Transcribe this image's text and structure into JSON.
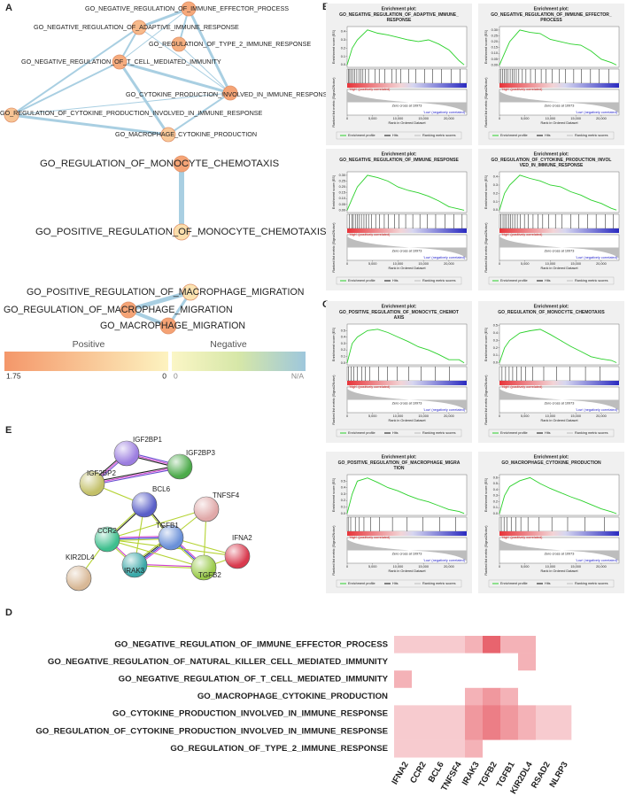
{
  "panel_labels": [
    "A",
    "B",
    "C",
    "D",
    "E"
  ],
  "network_a": {
    "groups": [
      {
        "nodes": [
          {
            "label": "GO_NEGATIVE_REGULATION_OF_IMMUNE_EFFECTOR_PROCESS",
            "value": 1.4
          },
          {
            "label": "GO_NEGATIVE_REGULATION_OF_ADAPTIVE_IMMUNE_RESPONSE",
            "value": 1.1
          },
          {
            "label": "GO_REGULATION_OF_TYPE_2_IMMUNE_RESPONSE",
            "value": 1.3
          },
          {
            "label": "GO_NEGATIVE_REGULATION_OF_T_CELL_MEDIATED_IMMUNITY",
            "value": 1.35
          },
          {
            "label": "GO_CYTOKINE_PRODUCTION_INVOLVED_IN_IMMUNE_RESPONSE",
            "value": 1.5
          },
          {
            "label": "GO_REGULATION_OF_CYTOKINE_PRODUCTION_INVOLVED_IN_IMMUNE_RESPONSE",
            "value": 0.9
          },
          {
            "label": "GO_MACROPHAGE_CYTOKINE_PRODUCTION",
            "value": 0.8
          }
        ],
        "edges": [
          [
            0,
            1
          ],
          [
            0,
            2
          ],
          [
            0,
            3
          ],
          [
            0,
            4
          ],
          [
            1,
            3
          ],
          [
            1,
            4
          ],
          [
            3,
            4
          ],
          [
            3,
            5
          ],
          [
            5,
            4
          ],
          [
            5,
            6
          ],
          [
            4,
            6
          ],
          [
            2,
            4
          ],
          [
            3,
            6
          ],
          [
            1,
            5
          ]
        ]
      },
      {
        "nodes": [
          {
            "label": "GO_REGULATION_OF_MONOCYTE_CHEMOTAXIS",
            "value": 1.5
          },
          {
            "label": "GO_POSITIVE_REGULATION_OF_MONOCYTE_CHEMOTAXIS",
            "value": 0.4
          }
        ],
        "edges": [
          [
            0,
            1
          ]
        ]
      },
      {
        "nodes": [
          {
            "label": "GO_POSITIVE_REGULATION_OF_MACROPHAGE_MIGRATION",
            "value": 0.3
          },
          {
            "label": "GO_REGULATION_OF_MACROPHAGE_MIGRATION",
            "value": 1.5
          },
          {
            "label": "GO_MACROPHAGE_MIGRATION",
            "value": 1.55
          }
        ],
        "edges": [
          [
            0,
            1
          ],
          [
            1,
            2
          ],
          [
            0,
            2
          ]
        ]
      }
    ],
    "edge_color": "#a9cfe2",
    "legend": {
      "positive": "Positive",
      "negative": "Negative",
      "pos_ticks": [
        1.75,
        0
      ],
      "neg_ticks": [
        "0",
        "N/A"
      ],
      "pos_colors": [
        "#f4976a",
        "#fdf3c0"
      ],
      "neg_colors": [
        "#fbf6c6",
        "#d6e7a8",
        "#9ec7dc"
      ]
    }
  },
  "gsea": {
    "common": {
      "heading": "Enrichment plot:",
      "es_label": "Enrichment score (ES)",
      "metric_label": "Ranked list metric (Signal2Noise)",
      "x_label": "Rank in Ordered Dataset",
      "high": "'High' (positively correlated)",
      "low": "'Low' (negatively correlated)",
      "zero_cross": "Zero cross at 10973",
      "legend": [
        "Enrichment profile",
        "Hits",
        "Ranking metric scores"
      ],
      "xlim": [
        0,
        23500
      ],
      "xticks": [
        0,
        {
          "value": 5000,
          "label": "5,000"
        },
        {
          "value": 10000,
          "label": "10,000"
        },
        {
          "value": 15000,
          "label": "15,000"
        },
        {
          "value": 20000,
          "label": "20,000"
        }
      ],
      "es_x": [
        0,
        1000,
        2000,
        4000,
        6000,
        8000,
        10000,
        12000,
        14000,
        16000,
        18000,
        20000,
        22000,
        23000
      ],
      "curve_color": "#2bd12b"
    },
    "plots": [
      {
        "title": [
          "GO_NEGATIVE_REGULATION_OF_ADAPTIVE_IMMUNE_",
          "RESPONSE"
        ],
        "ylim": [
          -0.03,
          0.46
        ],
        "yticks": [
          {
            "value": 0,
            "label": "0.0"
          },
          0.1,
          0.2,
          0.3,
          0.4
        ],
        "values": [
          0,
          0.2,
          0.3,
          0.42,
          0.38,
          0.36,
          0.33,
          0.3,
          0.28,
          0.3,
          0.25,
          0.18,
          0.05,
          0
        ],
        "hits": [
          300,
          500,
          800,
          1100,
          1500,
          1900,
          2300,
          2700,
          3100,
          3600,
          4200,
          5500,
          6300,
          7400,
          8800,
          9600,
          10500,
          12100,
          13500,
          15200,
          16800,
          18500,
          20500,
          22200
        ]
      },
      {
        "title": [
          "GO_NEGATIVE_REGULATION_OF_IMMUNE_EFFECTOR_",
          "PROCESS"
        ],
        "ylim": [
          -0.02,
          0.33
        ],
        "yticks": [
          {
            "value": 0,
            "label": "0.00"
          },
          {
            "value": 0.05,
            "label": "0.05"
          },
          {
            "value": 0.1,
            "label": "0.10"
          },
          0.15,
          {
            "value": 0.2,
            "label": "0.20"
          },
          0.25,
          {
            "value": 0.3,
            "label": "0.30"
          }
        ],
        "values": [
          0,
          0.1,
          0.2,
          0.3,
          0.28,
          0.27,
          0.22,
          0.2,
          0.18,
          0.17,
          0.12,
          0.05,
          0.02,
          0
        ],
        "hits": [
          200,
          600,
          1000,
          1300,
          1700,
          2100,
          2500,
          2900,
          3300,
          3800,
          4500,
          5200,
          6100,
          7000,
          8200,
          9100,
          10400,
          11800,
          13000,
          14600,
          16100,
          17900,
          19600,
          21500
        ]
      },
      {
        "title": [
          "GO_NEGATIVE_REGULATION_OF_IMMUNE_RESPONSE"
        ],
        "ylim": [
          -0.02,
          0.33
        ],
        "yticks": [
          {
            "value": 0,
            "label": "0.00"
          },
          {
            "value": 0.05,
            "label": "0.05"
          },
          {
            "value": 0.1,
            "label": "0.10"
          },
          0.15,
          {
            "value": 0.2,
            "label": "0.20"
          },
          0.25,
          {
            "value": 0.3,
            "label": "0.30"
          }
        ],
        "values": [
          0,
          0.1,
          0.2,
          0.3,
          0.28,
          0.25,
          0.2,
          0.17,
          0.15,
          0.12,
          0.08,
          0.03,
          0.01,
          0
        ],
        "hits": [
          400,
          900,
          1200,
          1600,
          2000,
          2400,
          2800,
          3300,
          3700,
          4200,
          4800,
          5600,
          6400,
          7300,
          8100,
          9300,
          10200,
          11500,
          12900,
          14300,
          15800,
          17400,
          19200,
          21000,
          22600
        ]
      },
      {
        "title": [
          "GO_REGULATION_OF_CYTOKINE_PRODUCTION_INVOL",
          "VED_IN_IMMUNE_RESPONSE"
        ],
        "ylim": [
          -0.03,
          0.46
        ],
        "yticks": [
          {
            "value": 0,
            "label": "0.0"
          },
          0.1,
          0.2,
          0.3,
          0.4
        ],
        "values": [
          0,
          0.2,
          0.3,
          0.42,
          0.38,
          0.35,
          0.3,
          0.28,
          0.22,
          0.18,
          0.12,
          0.08,
          0.02,
          0
        ],
        "hits": [
          250,
          700,
          1050,
          1400,
          1800,
          2200,
          2600,
          3000,
          3500,
          4100,
          4900,
          5700,
          6600,
          7600,
          8500,
          9700,
          11000,
          12300,
          14000,
          15600,
          17300,
          19000,
          20800,
          22400
        ]
      },
      {
        "title": [
          "GO_POSITIVE_REGULATION_OF_MONOCYTE_CHEMOT",
          "AXIS"
        ],
        "ylim": [
          -0.03,
          0.6
        ],
        "yticks": [
          {
            "value": 0,
            "label": "0.0"
          },
          0.1,
          0.2,
          0.3,
          0.4,
          0.5
        ],
        "values": [
          0,
          0.3,
          0.4,
          0.5,
          0.52,
          0.47,
          0.4,
          0.33,
          0.25,
          0.2,
          0.13,
          0.05,
          0.05,
          0
        ],
        "hits": [
          300,
          800,
          1300,
          2000,
          2900,
          3600,
          4400,
          6200,
          7900,
          9800,
          12100,
          14500,
          17300,
          20100
        ]
      },
      {
        "title": [
          "GO_REGULATION_OF_MONOCYTE_CHEMOTAXIS"
        ],
        "ylim": [
          -0.03,
          0.52
        ],
        "yticks": [
          {
            "value": 0,
            "label": "0.0"
          },
          0.1,
          0.2,
          0.3,
          0.4,
          0.5
        ],
        "values": [
          0,
          0.2,
          0.3,
          0.4,
          0.43,
          0.45,
          0.38,
          0.3,
          0.22,
          0.15,
          0.08,
          0.05,
          0.03,
          0
        ],
        "hits": [
          500,
          1200,
          1900,
          2600,
          3400,
          4300,
          5100,
          6500,
          8700,
          11200,
          13800,
          16900,
          19800
        ]
      },
      {
        "title": [
          "GO_POSITIVE_REGULATION_OF_MACROPHAGE_MIGRA",
          "TION"
        ],
        "ylim": [
          -0.03,
          0.6
        ],
        "yticks": [
          {
            "value": 0,
            "label": "0.0"
          },
          0.1,
          0.2,
          0.3,
          0.4,
          0.5
        ],
        "values": [
          0,
          0.3,
          0.5,
          0.55,
          0.48,
          0.4,
          0.35,
          0.28,
          0.22,
          0.18,
          0.12,
          0.06,
          0.03,
          0
        ],
        "hits": [
          200,
          700,
          1600,
          2400,
          3300,
          4600,
          6400,
          8900,
          11800,
          14900,
          18200,
          21300
        ]
      },
      {
        "title": [
          "GO_MACROPHAGE_CYTOKINE_PRODUCTION"
        ],
        "ylim": [
          -0.03,
          0.65
        ],
        "yticks": [
          {
            "value": 0,
            "label": "0.0"
          },
          0.1,
          0.2,
          0.3,
          0.4,
          0.5,
          0.6
        ],
        "values": [
          0,
          0.3,
          0.45,
          0.55,
          0.6,
          0.5,
          0.42,
          0.35,
          0.28,
          0.22,
          0.15,
          0.08,
          0.03,
          0
        ],
        "hits": [
          350,
          900,
          1500,
          2300,
          3200,
          4200,
          5600,
          7800,
          10300,
          13400,
          16800,
          20600
        ]
      }
    ]
  },
  "string_network": {
    "nodes": [
      {
        "label": "IGF2BP1",
        "color": "#9c7ee0"
      },
      {
        "label": "IGF2BP3",
        "color": "#4caa4a"
      },
      {
        "label": "IGF2BP2",
        "color": "#c3c068"
      },
      {
        "label": "BCL6",
        "color": "#5a5fc8"
      },
      {
        "label": "TNFSF4",
        "color": "#e0a8a8"
      },
      {
        "label": "CCR2",
        "color": "#3fbf8e"
      },
      {
        "label": "TGFB1",
        "color": "#6a90d8"
      },
      {
        "label": "IFNA2",
        "color": "#d93a4e"
      },
      {
        "label": "IRAK3",
        "color": "#3aa8a8"
      },
      {
        "label": "TGFB2",
        "color": "#9acb4a"
      },
      {
        "label": "KIR2DL4",
        "color": "#d8b896"
      }
    ],
    "edges": [
      {
        "from": 0,
        "to": 1,
        "colors": [
          "#6a4fd0",
          "#d040d0",
          "#222222"
        ]
      },
      {
        "from": 0,
        "to": 2,
        "colors": [
          "#6a4fd0",
          "#d040d0",
          "#222222"
        ]
      },
      {
        "from": 1,
        "to": 2,
        "colors": [
          "#6a4fd0",
          "#d040d0",
          "#222222"
        ]
      },
      {
        "from": 2,
        "to": 3,
        "colors": [
          "#b5d334"
        ]
      },
      {
        "from": 3,
        "to": 5,
        "colors": [
          "#222222",
          "#b5d334"
        ]
      },
      {
        "from": 3,
        "to": 6,
        "colors": [
          "#222222",
          "#b5d334"
        ]
      },
      {
        "from": 3,
        "to": 8,
        "colors": [
          "#b5d334"
        ]
      },
      {
        "from": 5,
        "to": 6,
        "colors": [
          "#d040d0",
          "#2a3fd0",
          "#b5d334"
        ]
      },
      {
        "from": 5,
        "to": 8,
        "colors": [
          "#d040d0",
          "#b5d334"
        ]
      },
      {
        "from": 5,
        "to": 10,
        "colors": [
          "#b5d334"
        ]
      },
      {
        "from": 6,
        "to": 8,
        "colors": [
          "#d040d0",
          "#2a3fd0",
          "#222222",
          "#b5d334"
        ]
      },
      {
        "from": 6,
        "to": 9,
        "colors": [
          "#d040d0",
          "#2a3fd0",
          "#b5d334"
        ]
      },
      {
        "from": 6,
        "to": 4,
        "colors": [
          "#b5d334"
        ]
      },
      {
        "from": 6,
        "to": 7,
        "colors": [
          "#b5d334"
        ]
      },
      {
        "from": 8,
        "to": 9,
        "colors": [
          "#d040d0",
          "#b5d334"
        ]
      },
      {
        "from": 7,
        "to": 9,
        "colors": [
          "#b5d334"
        ]
      },
      {
        "from": 4,
        "to": 9,
        "colors": [
          "#b5d334"
        ]
      },
      {
        "from": 4,
        "to": 5,
        "colors": [
          "#b5d334"
        ]
      },
      {
        "from": 5,
        "to": 9,
        "colors": [
          "#b5d334"
        ]
      },
      {
        "from": 5,
        "to": 7,
        "colors": [
          "#b5d334"
        ]
      }
    ]
  },
  "heatmap": {
    "rows": [
      "GO_NEGATIVE_REGULATION_OF_IMMUNE_EFFECTOR_PROCESS",
      "GO_NEGATIVE_REGULATION_OF_NATURAL_KILLER_CELL_MEDIATED_IMMUNITY",
      "GO_NEGATIVE_REGULATION_OF_T_CELL_MEDIATED_IMMUNITY",
      "GO_MACROPHAGE_CYTOKINE_PRODUCTION",
      "GO_CYTOKINE_PRODUCTION_INVOLVED_IN_IMMUNE_RESPONSE",
      "GO_REGULATION_OF_CYTOKINE_PRODUCTION_INVOLVED_IN_IMMUNE_RESPONSE",
      "GO_REGULATION_OF_TYPE_2_IMMUNE_RESPONSE"
    ],
    "columns": [
      "IFNA2",
      "CCR2",
      "BCL6",
      "TNFSF4",
      "IRAK3",
      "TGFB2",
      "TGFB1",
      "KIR2DL4",
      "RSAD2",
      "NLRP3"
    ],
    "values": [
      [
        1,
        1,
        1,
        1,
        1.5,
        3,
        1.5,
        1.5,
        0,
        0
      ],
      [
        0,
        0,
        0,
        0,
        0,
        0,
        0,
        1.5,
        0,
        0
      ],
      [
        1.5,
        0,
        0,
        0,
        0,
        0,
        0,
        0,
        0,
        0
      ],
      [
        0,
        0,
        0,
        0,
        1.5,
        2,
        1.5,
        0,
        0,
        0
      ],
      [
        1,
        1,
        1,
        1,
        2,
        2.5,
        2,
        1.5,
        1,
        1
      ],
      [
        1,
        1,
        1,
        1,
        2,
        2.5,
        2,
        1.5,
        1,
        1
      ],
      [
        1,
        1,
        1,
        1,
        1.5,
        0,
        0,
        0,
        0,
        0
      ]
    ],
    "zlim": [
      0,
      3
    ],
    "colors": [
      "#ffffff",
      "#e8646e"
    ]
  }
}
